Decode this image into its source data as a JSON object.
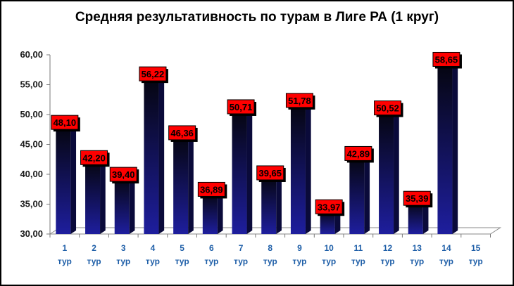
{
  "chart_data": {
    "type": "bar",
    "title": "Средняя результативность по турам в Лиге РА (1 круг)",
    "categories": [
      [
        "1",
        "тур"
      ],
      [
        "2",
        "тур"
      ],
      [
        "3",
        "тур"
      ],
      [
        "4",
        "тур"
      ],
      [
        "5",
        "тур"
      ],
      [
        "6",
        "тур"
      ],
      [
        "7",
        "тур"
      ],
      [
        "8",
        "тур"
      ],
      [
        "9",
        "тур"
      ],
      [
        "10",
        "тур"
      ],
      [
        "11",
        "тур"
      ],
      [
        "12",
        "тур"
      ],
      [
        "13",
        "тур"
      ],
      [
        "14",
        "тур"
      ],
      [
        "15",
        "тур"
      ]
    ],
    "values": [
      48.1,
      42.2,
      39.4,
      56.22,
      46.36,
      36.89,
      50.71,
      39.65,
      51.78,
      33.97,
      42.89,
      50.52,
      35.39,
      58.65,
      null
    ],
    "value_labels": [
      "48,10",
      "42,20",
      "39,40",
      "56,22",
      "46,36",
      "36,89",
      "50,71",
      "39,65",
      "51,78",
      "33,97",
      "42,89",
      "50,52",
      "35,39",
      "58,65",
      ""
    ],
    "ylim": [
      30,
      60
    ],
    "y_ticks": [
      "30,00",
      "35,00",
      "40,00",
      "45,00",
      "50,00",
      "55,00",
      "60,00"
    ],
    "colors": {
      "bar_bottom": "#1e1e9e",
      "bar_top": "#05050f",
      "label_bg": "#ff0000",
      "category_text": "#1f5fa8",
      "axis_text": "#1a1a1a"
    }
  }
}
